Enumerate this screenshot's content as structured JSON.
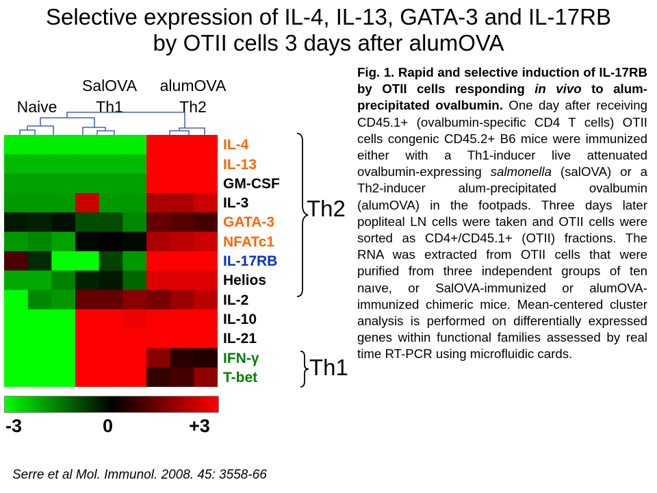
{
  "title": {
    "line1": "Selective expression of IL-4, IL-13, GATA-3 and IL-17RB",
    "line2": "by OTII cells 3 days after alumOVA"
  },
  "groups": {
    "naive": "Naive",
    "salova_top": "SalOVA",
    "salova_bottom": "Th1",
    "alumova_top": "alumOVA",
    "alumova_bottom": "Th2"
  },
  "chart_data": {
    "type": "heatmap",
    "columns": [
      "Naive",
      "Naive",
      "Naive",
      "SalOVA",
      "SalOVA",
      "SalOVA",
      "alumOVA",
      "alumOVA",
      "alumOVA"
    ],
    "rows": [
      {
        "gene": "IL-4",
        "color": "#ff6600",
        "values": [
          -2.8,
          -2.8,
          -2.8,
          -2.8,
          -2.8,
          -2.8,
          3,
          3,
          3
        ]
      },
      {
        "gene": "IL-13",
        "color": "#ff6600",
        "values": [
          -2.2,
          -2.2,
          -2.2,
          -2.2,
          -2.2,
          -2.2,
          3,
          3,
          3
        ]
      },
      {
        "gene": "GM-CSF",
        "color": "#000000",
        "values": [
          -1.9,
          -1.9,
          -1.9,
          -1.9,
          -1.9,
          -1.9,
          3,
          3,
          3
        ]
      },
      {
        "gene": "IL-3",
        "color": "#000000",
        "values": [
          -1.8,
          -1.8,
          -1.8,
          2.4,
          -1.8,
          -1.8,
          2,
          2,
          2.4
        ]
      },
      {
        "gene": "GATA-3",
        "color": "#ff6600",
        "values": [
          -0.3,
          -0.4,
          -0.2,
          -0.9,
          -0.9,
          -1.6,
          1.2,
          1.0,
          0.8
        ]
      },
      {
        "gene": "NFATc1",
        "color": "#ff6600",
        "values": [
          -1.8,
          -1.6,
          -1.9,
          -0.1,
          0,
          -0.1,
          2,
          2.2,
          2.4
        ]
      },
      {
        "gene": "IL-17RB",
        "color": "#0033cc",
        "values": [
          0.9,
          -0.5,
          -3,
          -3,
          -0.8,
          -1.8,
          3,
          3,
          3
        ]
      },
      {
        "gene": "Helios",
        "color": "#000000",
        "values": [
          -2,
          -2,
          -1.5,
          -0.4,
          -0.3,
          -1.2,
          2.6,
          2.6,
          2.6
        ]
      },
      {
        "gene": "IL-2",
        "color": "#000000",
        "values": [
          -3,
          -1.6,
          -1.8,
          1.2,
          1.2,
          1.6,
          1.4,
          1.8,
          2.2
        ]
      },
      {
        "gene": "IL-10",
        "color": "#000000",
        "values": [
          -3,
          -3,
          -3,
          3,
          3,
          2.8,
          3,
          3,
          3
        ]
      },
      {
        "gene": "IL-21",
        "color": "#000000",
        "values": [
          -3,
          -3,
          -3,
          3,
          3,
          3,
          3,
          3,
          3
        ]
      },
      {
        "gene": "IFN-γ",
        "color": "#008000",
        "values": [
          -3,
          -3,
          -3,
          3,
          3,
          3,
          1.6,
          0.5,
          0.4
        ]
      },
      {
        "gene": "T-bet",
        "color": "#008000",
        "values": [
          -3,
          -3,
          -3,
          3,
          3,
          3,
          0.6,
          0.8,
          1.7
        ]
      }
    ],
    "color_scale": {
      "min": -3,
      "mid": 0,
      "max": 3,
      "low_color": "#00ff00",
      "mid_color": "#000000",
      "high_color": "#ff0000"
    },
    "colorbar_ticks": [
      "-3",
      "0",
      "+3"
    ]
  },
  "brackets": {
    "th2": "Th2",
    "th1": "Th1"
  },
  "citation": "Serre et al Mol. Immunol. 2008. 45: 3558-66",
  "caption": {
    "bold_1": "Fig. 1. Rapid and selective induction of IL-17RB by OTII cells responding ",
    "bold_italic": "in vivo",
    "bold_2": " to alum-precipitated ovalbumin.",
    "text_1": " One day after receiving CD45.1+ (ovalbumin-specific CD4 T cells) OTII cells congenic CD45.2+ B6 mice were immunized either with a Th1-inducer live attenuated ovalbumin-expressing ",
    "italic": "salmonella",
    "text_2": " (salOVA) or a Th2-inducer alum-precipitated ovalbumin (alumOVA) in the footpads. Three days later popliteal LN cells were taken and OTII cells were sorted as CD4+/CD45.1+ (OTII) fractions. The RNA was extracted from OTII cells that were purified from three independent groups of ten naıve, or SalOVA-immunized or alumOVA-immunized chimeric mice. Mean-centered cluster analysis is performed on differentially expressed genes within functional families assessed by real time RT-PCR using microfluidic cards."
  }
}
